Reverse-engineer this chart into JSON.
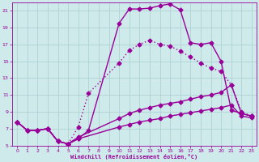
{
  "background_color": "#ceeaea",
  "grid_color": "#aacece",
  "line_color": "#990099",
  "xlabel": "Windchill (Refroidissement éolien,°C)",
  "xlim": [
    -0.5,
    23.5
  ],
  "ylim": [
    5,
    22
  ],
  "yticks": [
    5,
    7,
    9,
    11,
    13,
    15,
    17,
    19,
    21
  ],
  "xticks": [
    0,
    1,
    2,
    3,
    4,
    5,
    6,
    7,
    8,
    9,
    10,
    11,
    12,
    13,
    14,
    15,
    16,
    17,
    18,
    19,
    20,
    21,
    22,
    23
  ],
  "line_solid_markers_x": [
    0,
    1,
    2,
    3,
    4,
    5,
    6,
    7,
    10,
    11,
    12,
    13,
    14,
    15,
    16,
    17,
    18,
    19,
    20,
    21,
    22,
    23
  ],
  "line_solid_markers_y": [
    7.8,
    6.8,
    6.8,
    7.0,
    5.5,
    5.2,
    5.8,
    6.8,
    19.5,
    21.2,
    21.2,
    21.3,
    21.6,
    21.8,
    21.1,
    17.2,
    17.0,
    17.2,
    15.0,
    9.2,
    8.8,
    8.5
  ],
  "line_dotted_markers_x": [
    0,
    1,
    2,
    3,
    4,
    5,
    6,
    7,
    10,
    11,
    12,
    13,
    14,
    15,
    16,
    17,
    18,
    19,
    20,
    21,
    22,
    23
  ],
  "line_dotted_markers_y": [
    7.8,
    6.8,
    6.8,
    7.0,
    5.5,
    5.2,
    7.2,
    11.2,
    14.8,
    16.3,
    17.0,
    17.5,
    17.0,
    16.8,
    16.2,
    15.5,
    14.8,
    14.2,
    13.8,
    12.2,
    9.0,
    8.5
  ],
  "line_flat1_x": [
    0,
    1,
    2,
    3,
    4,
    5,
    6,
    10,
    11,
    12,
    13,
    14,
    15,
    16,
    17,
    18,
    19,
    20,
    21,
    22,
    23
  ],
  "line_flat1_y": [
    7.8,
    6.8,
    6.8,
    7.0,
    5.5,
    5.2,
    6.0,
    8.2,
    8.8,
    9.2,
    9.5,
    9.8,
    10.0,
    10.2,
    10.5,
    10.8,
    11.0,
    11.3,
    12.2,
    8.8,
    8.5
  ],
  "line_flat2_x": [
    0,
    1,
    2,
    3,
    4,
    5,
    6,
    10,
    11,
    12,
    13,
    14,
    15,
    16,
    17,
    18,
    19,
    20,
    21,
    22,
    23
  ],
  "line_flat2_y": [
    7.8,
    6.8,
    6.8,
    7.0,
    5.5,
    5.2,
    5.8,
    7.2,
    7.5,
    7.8,
    8.0,
    8.2,
    8.5,
    8.7,
    8.9,
    9.1,
    9.3,
    9.5,
    9.8,
    8.5,
    8.3
  ],
  "marker": "D",
  "marker_size": 2.5,
  "line_width": 1.0
}
